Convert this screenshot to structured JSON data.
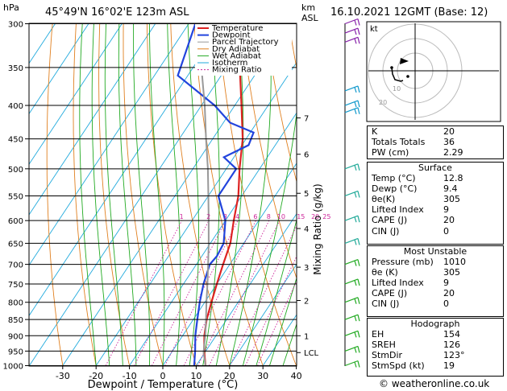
{
  "header": {
    "hpa_unit": "hPa",
    "location": "45°49'N  16°02'E  123m  ASL",
    "km_unit": "km",
    "asl_unit": "ASL",
    "datetime": "16.10.2021  12GMT  (Base: 12)"
  },
  "legend": [
    {
      "label": "Temperature",
      "color": "#dd2222"
    },
    {
      "label": "Dewpoint",
      "color": "#2244dd"
    },
    {
      "label": "Parcel Trajectory",
      "color": "#999999"
    },
    {
      "label": "Dry Adiabat",
      "color": "#e08020"
    },
    {
      "label": "Wet Adiabat",
      "color": "#22aa22"
    },
    {
      "label": "Isotherm",
      "color": "#22aadd"
    },
    {
      "label": "Mixing Ratio",
      "color": "#cc2299"
    }
  ],
  "chart_data": {
    "type": "line",
    "title": "",
    "xlabel": "Dewpoint / Temperature (°C)",
    "ylabel": "",
    "mixing_ratio_axis_label": "Mixing Ratio (g/kg)",
    "xlim": [
      -35,
      40
    ],
    "ylim_hpa": [
      1000,
      300
    ],
    "x_ticks": [
      -30,
      -20,
      -10,
      0,
      10,
      20,
      30,
      40
    ],
    "pressure_levels": [
      300,
      350,
      400,
      450,
      500,
      550,
      600,
      650,
      700,
      750,
      800,
      850,
      900,
      950,
      1000
    ],
    "km_ticks": [
      {
        "label": "7",
        "p": 418
      },
      {
        "label": "6",
        "p": 475
      },
      {
        "label": "5",
        "p": 545
      },
      {
        "label": "4",
        "p": 617
      },
      {
        "label": "3",
        "p": 707
      },
      {
        "label": "2",
        "p": 795
      },
      {
        "label": "1",
        "p": 900
      },
      {
        "label": "LCL",
        "p": 955
      }
    ],
    "mixing_ratio_labels": [
      "1",
      "2",
      "3",
      "4",
      "6",
      "8",
      "10",
      "15",
      "20",
      "25"
    ],
    "mixing_ratio_values": [
      1,
      2,
      3,
      4,
      6,
      8,
      10,
      15,
      20,
      25
    ],
    "series": [
      {
        "name": "Temperature",
        "color": "#dd2222",
        "points": [
          [
            1000,
            12.8
          ],
          [
            950,
            9.5
          ],
          [
            900,
            6.5
          ],
          [
            850,
            4
          ],
          [
            800,
            2
          ],
          [
            750,
            0
          ],
          [
            700,
            -2
          ],
          [
            650,
            -4
          ],
          [
            600,
            -7.5
          ],
          [
            550,
            -11
          ],
          [
            500,
            -16
          ],
          [
            450,
            -21
          ],
          [
            400,
            -28
          ],
          [
            350,
            -36
          ],
          [
            300,
            -44
          ]
        ]
      },
      {
        "name": "Dewpoint",
        "color": "#2244dd",
        "points": [
          [
            1000,
            9.4
          ],
          [
            950,
            6.8
          ],
          [
            900,
            3.8
          ],
          [
            850,
            1.2
          ],
          [
            800,
            -1.5
          ],
          [
            750,
            -4
          ],
          [
            700,
            -6
          ],
          [
            680,
            -5.5
          ],
          [
            650,
            -6
          ],
          [
            600,
            -10
          ],
          [
            550,
            -17
          ],
          [
            500,
            -17
          ],
          [
            480,
            -23
          ],
          [
            460,
            -18
          ],
          [
            440,
            -19
          ],
          [
            425,
            -28
          ],
          [
            400,
            -36
          ],
          [
            360,
            -53
          ],
          [
            300,
            -58
          ]
        ]
      },
      {
        "name": "Parcel Trajectory",
        "color": "#999999",
        "points": [
          [
            1000,
            12.8
          ],
          [
            955,
            9.6
          ],
          [
            900,
            6.8
          ],
          [
            850,
            3.8
          ],
          [
            800,
            0.5
          ],
          [
            750,
            -2.8
          ],
          [
            700,
            -6.5
          ],
          [
            650,
            -10.5
          ],
          [
            600,
            -15
          ],
          [
            550,
            -20
          ],
          [
            500,
            -25.5
          ],
          [
            450,
            -32
          ],
          [
            400,
            -39
          ],
          [
            350,
            -47.5
          ],
          [
            300,
            -57
          ]
        ]
      }
    ]
  },
  "hodograph": {
    "unit_label": "kt",
    "ring_labels": [
      "10",
      "20"
    ]
  },
  "wind_barbs_levels": [
    300,
    310,
    320,
    380,
    400,
    410,
    500,
    550,
    600,
    650,
    700,
    750,
    800,
    850,
    900,
    950,
    1000
  ],
  "indices": [
    {
      "label": "K",
      "value": "20"
    },
    {
      "label": "Totals Totals",
      "value": "36"
    },
    {
      "label": "PW (cm)",
      "value": "2.29"
    }
  ],
  "surface": {
    "title": "Surface",
    "rows": [
      {
        "label": "Temp (°C)",
        "value": "12.8"
      },
      {
        "label": "Dewp (°C)",
        "value": "9.4"
      },
      {
        "label": "θe(K)",
        "value": "305"
      },
      {
        "label": "Lifted Index",
        "value": "9"
      },
      {
        "label": "CAPE (J)",
        "value": "20"
      },
      {
        "label": "CIN (J)",
        "value": "0"
      }
    ]
  },
  "most_unstable": {
    "title": "Most Unstable",
    "rows": [
      {
        "label": "Pressure (mb)",
        "value": "1010"
      },
      {
        "label": "θe (K)",
        "value": "305"
      },
      {
        "label": "Lifted Index",
        "value": "9"
      },
      {
        "label": "CAPE (J)",
        "value": "20"
      },
      {
        "label": "CIN (J)",
        "value": "0"
      }
    ]
  },
  "hodograph_table": {
    "title": "Hodograph",
    "rows": [
      {
        "label": "EH",
        "value": "154"
      },
      {
        "label": "SREH",
        "value": "126"
      },
      {
        "label": "StmDir",
        "value": "123°"
      },
      {
        "label": "StmSpd (kt)",
        "value": "19"
      }
    ]
  },
  "footer": "© weatheronline.co.uk"
}
